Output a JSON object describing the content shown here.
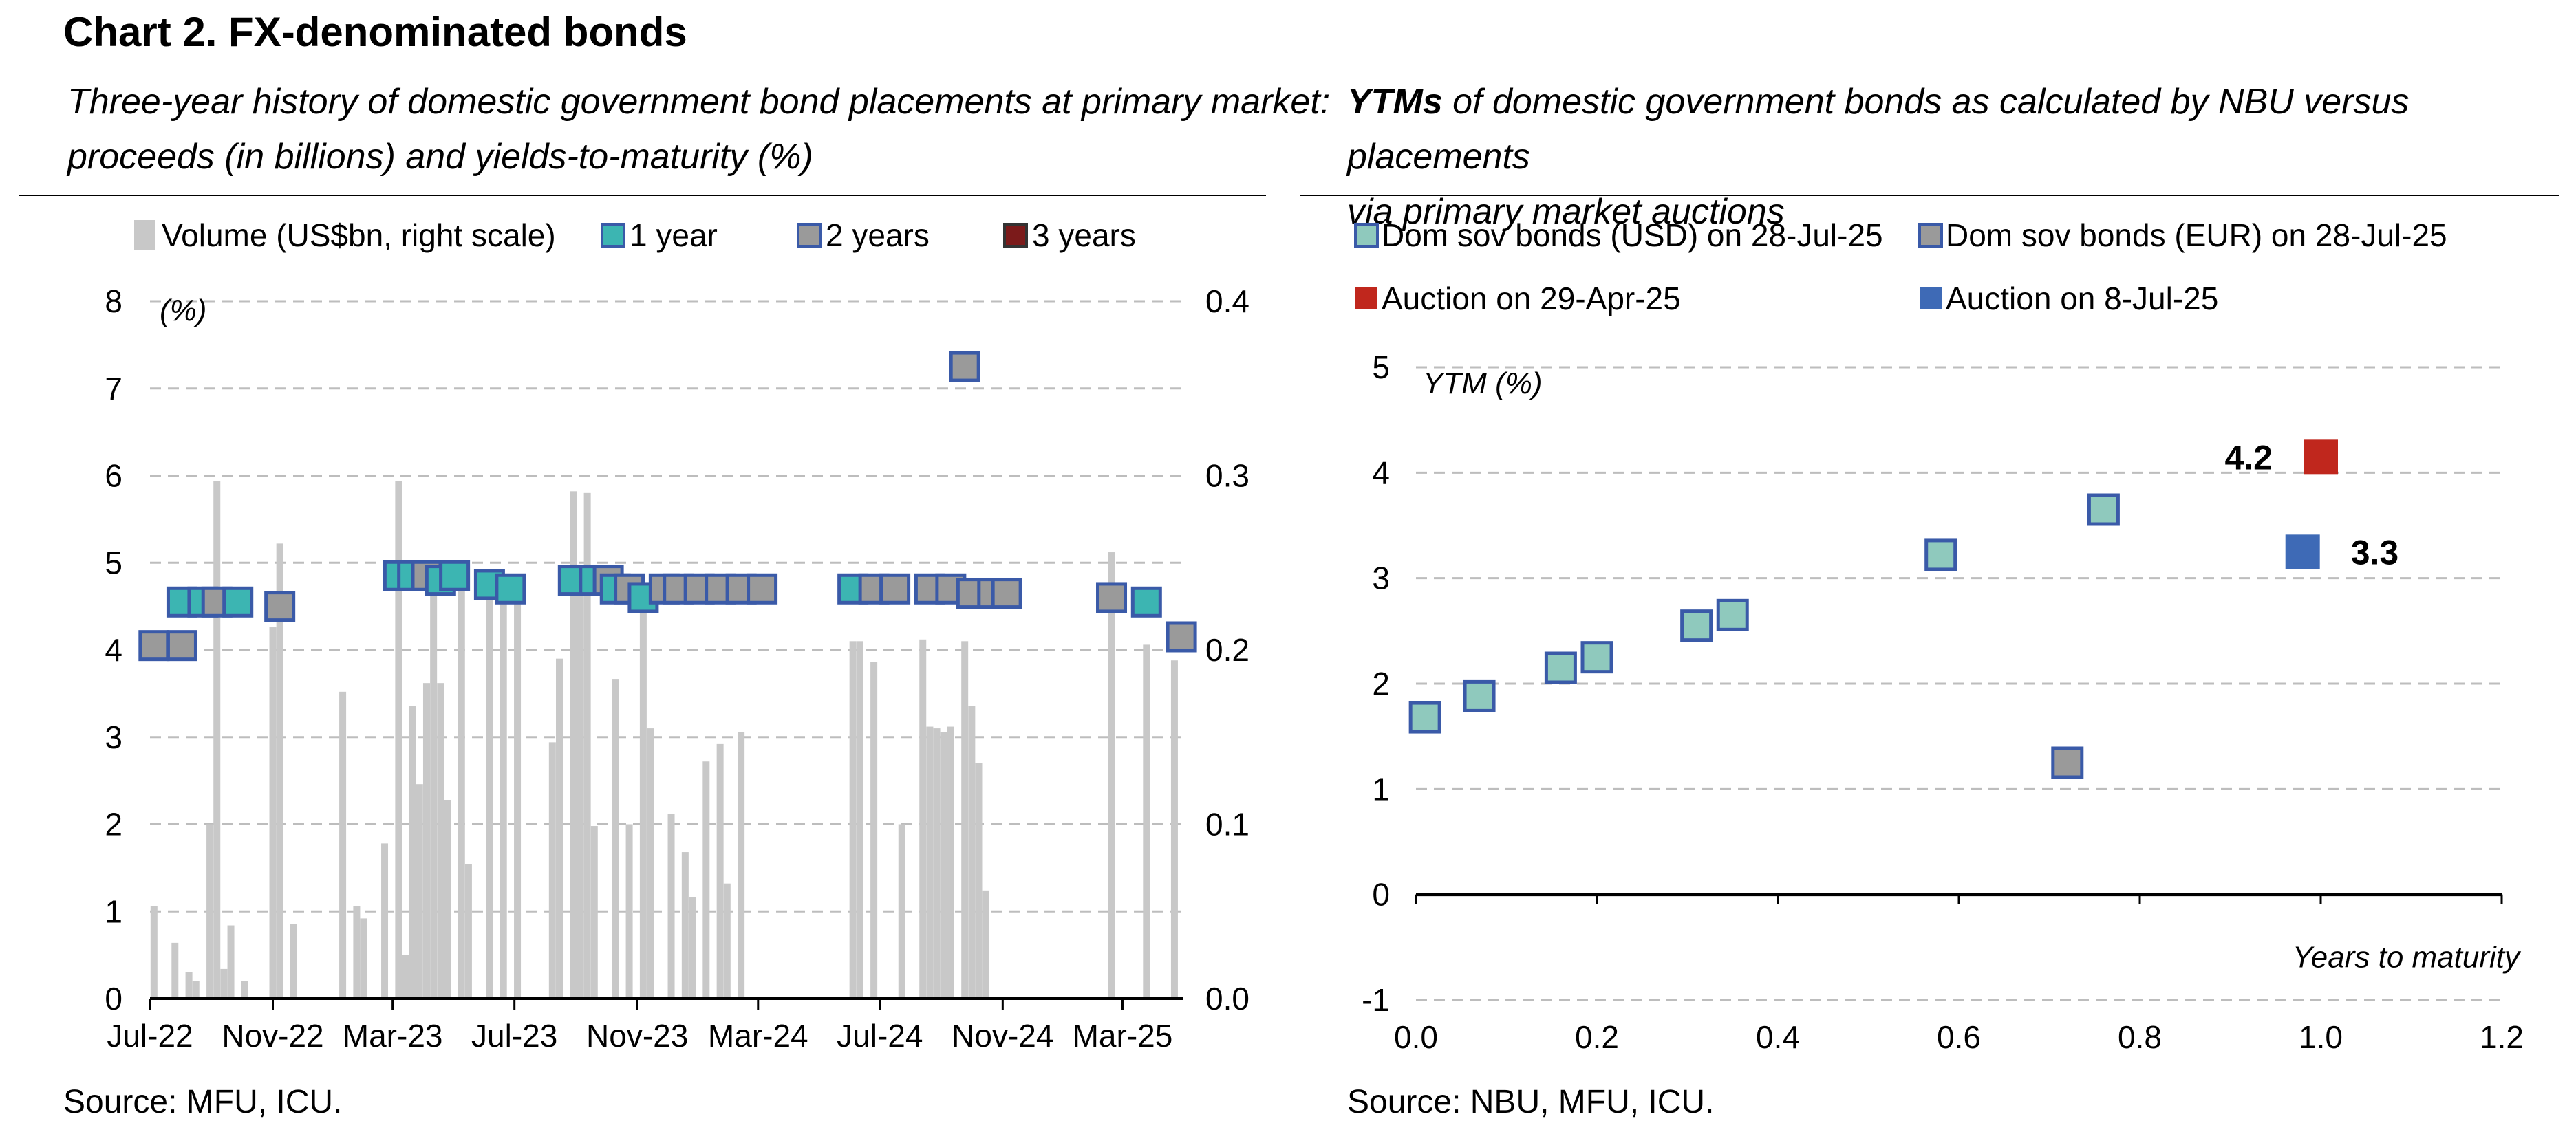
{
  "title": "Chart 2. FX-denominated bonds",
  "left": {
    "subtitle_line1": "Three-year history of domestic government bond placements at primary market:",
    "subtitle_line2": "proceeds (in billions) and yields-to-maturity (%)",
    "source": "Source: MFU, ICU."
  },
  "right": {
    "subtitle_bold": "YTMs",
    "subtitle_rest1": " of domestic government bonds as calculated by NBU versus placements",
    "subtitle_line2": "via primary market auctions",
    "source": "Source: NBU, MFU, ICU."
  },
  "colors": {
    "volume_bar": "#c8c8c8",
    "one_year": "#3cb5b2",
    "two_years": "#9a9a9a",
    "three_years": "#7b1a1a",
    "marker_border": "#3a5aa8",
    "usd_bond": "#8fc9bd",
    "eur_bond": "#9a9a9a",
    "auction_apr": "#c0271d",
    "auction_jul": "#3e6ab6",
    "gridline": "#bdbdbd"
  },
  "chart_data": [
    {
      "type": "bar+scatter",
      "legend": [
        {
          "key": "volume",
          "label": "Volume (US$bn, right scale)"
        },
        {
          "key": "one_year",
          "label": "1 year"
        },
        {
          "key": "two_years",
          "label": "2 years"
        },
        {
          "key": "three_years",
          "label": "3 years"
        }
      ],
      "ylabel_left": "(%)",
      "ylim_left": [
        0,
        8
      ],
      "yticks_left": [
        "0",
        "1",
        "2",
        "3",
        "4",
        "5",
        "6",
        "7",
        "8"
      ],
      "ylim_right": [
        0,
        0.4
      ],
      "yticks_right": [
        "0.0",
        "0.1",
        "0.2",
        "0.3",
        "0.4"
      ],
      "x_range": [
        "2022-07-01",
        "2025-05-01"
      ],
      "x_ticks": [
        {
          "date": "2022-07-01",
          "label": "Jul-22"
        },
        {
          "date": "2022-11-01",
          "label": "Nov-22"
        },
        {
          "date": "2023-03-01",
          "label": "Mar-23"
        },
        {
          "date": "2023-07-01",
          "label": "Jul-23"
        },
        {
          "date": "2023-11-01",
          "label": "Nov-23"
        },
        {
          "date": "2024-03-01",
          "label": "Mar-24"
        },
        {
          "date": "2024-07-01",
          "label": "Jul-24"
        },
        {
          "date": "2024-11-01",
          "label": "Nov-24"
        },
        {
          "date": "2025-03-01",
          "label": "Mar-25"
        }
      ],
      "volume_series": [
        {
          "date": "2022-07-05",
          "value": 0.053
        },
        {
          "date": "2022-07-26",
          "value": 0.032
        },
        {
          "date": "2022-08-09",
          "value": 0.015
        },
        {
          "date": "2022-08-16",
          "value": 0.01
        },
        {
          "date": "2022-08-30",
          "value": 0.1
        },
        {
          "date": "2022-09-06",
          "value": 0.297
        },
        {
          "date": "2022-09-13",
          "value": 0.017
        },
        {
          "date": "2022-09-20",
          "value": 0.042
        },
        {
          "date": "2022-10-04",
          "value": 0.01
        },
        {
          "date": "2022-11-01",
          "value": 0.213
        },
        {
          "date": "2022-11-08",
          "value": 0.261
        },
        {
          "date": "2022-11-22",
          "value": 0.043
        },
        {
          "date": "2023-01-10",
          "value": 0.176
        },
        {
          "date": "2023-01-24",
          "value": 0.053
        },
        {
          "date": "2023-01-31",
          "value": 0.046
        },
        {
          "date": "2023-02-21",
          "value": 0.089
        },
        {
          "date": "2023-03-07",
          "value": 0.297
        },
        {
          "date": "2023-03-14",
          "value": 0.025
        },
        {
          "date": "2023-03-21",
          "value": 0.168
        },
        {
          "date": "2023-03-28",
          "value": 0.123
        },
        {
          "date": "2023-04-04",
          "value": 0.181
        },
        {
          "date": "2023-04-11",
          "value": 0.234
        },
        {
          "date": "2023-04-18",
          "value": 0.181
        },
        {
          "date": "2023-04-25",
          "value": 0.114
        },
        {
          "date": "2023-05-09",
          "value": 0.237
        },
        {
          "date": "2023-05-16",
          "value": 0.077
        },
        {
          "date": "2023-06-06",
          "value": 0.241
        },
        {
          "date": "2023-06-20",
          "value": 0.237
        },
        {
          "date": "2023-07-04",
          "value": 0.234
        },
        {
          "date": "2023-08-08",
          "value": 0.147
        },
        {
          "date": "2023-08-15",
          "value": 0.195
        },
        {
          "date": "2023-08-29",
          "value": 0.291
        },
        {
          "date": "2023-09-05",
          "value": 0.242
        },
        {
          "date": "2023-09-12",
          "value": 0.29
        },
        {
          "date": "2023-09-19",
          "value": 0.099
        },
        {
          "date": "2023-10-10",
          "value": 0.183
        },
        {
          "date": "2023-10-24",
          "value": 0.1
        },
        {
          "date": "2023-11-07",
          "value": 0.223
        },
        {
          "date": "2023-11-14",
          "value": 0.155
        },
        {
          "date": "2023-12-05",
          "value": 0.106
        },
        {
          "date": "2023-12-19",
          "value": 0.084
        },
        {
          "date": "2023-12-26",
          "value": 0.058
        },
        {
          "date": "2024-01-09",
          "value": 0.136
        },
        {
          "date": "2024-01-23",
          "value": 0.146
        },
        {
          "date": "2024-01-30",
          "value": 0.066
        },
        {
          "date": "2024-02-13",
          "value": 0.153
        },
        {
          "date": "2024-06-04",
          "value": 0.205
        },
        {
          "date": "2024-06-11",
          "value": 0.205
        },
        {
          "date": "2024-06-25",
          "value": 0.193
        },
        {
          "date": "2024-07-23",
          "value": 0.1
        },
        {
          "date": "2024-08-13",
          "value": 0.206
        },
        {
          "date": "2024-08-20",
          "value": 0.156
        },
        {
          "date": "2024-08-27",
          "value": 0.155
        },
        {
          "date": "2024-09-03",
          "value": 0.153
        },
        {
          "date": "2024-09-10",
          "value": 0.156
        },
        {
          "date": "2024-09-24",
          "value": 0.205
        },
        {
          "date": "2024-10-01",
          "value": 0.168
        },
        {
          "date": "2024-10-08",
          "value": 0.135
        },
        {
          "date": "2024-10-15",
          "value": 0.062
        },
        {
          "date": "2025-02-18",
          "value": 0.256
        },
        {
          "date": "2025-03-25",
          "value": 0.203
        },
        {
          "date": "2025-04-22",
          "value": 0.194
        }
      ],
      "yield_points": [
        {
          "date": "2022-07-05",
          "series": "two_years",
          "value": 4.05
        },
        {
          "date": "2022-08-02",
          "series": "two_years",
          "value": 4.05
        },
        {
          "date": "2022-08-02",
          "series": "one_year",
          "value": 4.55
        },
        {
          "date": "2022-08-23",
          "series": "one_year",
          "value": 4.55
        },
        {
          "date": "2022-09-06",
          "series": "two_years",
          "value": 4.55
        },
        {
          "date": "2022-09-27",
          "series": "one_year",
          "value": 4.55
        },
        {
          "date": "2022-11-08",
          "series": "two_years",
          "value": 4.5
        },
        {
          "date": "2023-03-07",
          "series": "one_year",
          "value": 4.85
        },
        {
          "date": "2023-03-21",
          "series": "one_year",
          "value": 4.85
        },
        {
          "date": "2023-04-04",
          "series": "two_years",
          "value": 4.85
        },
        {
          "date": "2023-04-18",
          "series": "one_year",
          "value": 4.8
        },
        {
          "date": "2023-05-02",
          "series": "one_year",
          "value": 4.85
        },
        {
          "date": "2023-06-06",
          "series": "one_year",
          "value": 4.75
        },
        {
          "date": "2023-06-27",
          "series": "one_year",
          "value": 4.7
        },
        {
          "date": "2023-08-29",
          "series": "one_year",
          "value": 4.8
        },
        {
          "date": "2023-09-19",
          "series": "one_year",
          "value": 4.8
        },
        {
          "date": "2023-10-03",
          "series": "two_years",
          "value": 4.8
        },
        {
          "date": "2023-10-10",
          "series": "one_year",
          "value": 4.7
        },
        {
          "date": "2023-10-24",
          "series": "two_years",
          "value": 4.7
        },
        {
          "date": "2023-11-07",
          "series": "one_year",
          "value": 4.6
        },
        {
          "date": "2023-11-28",
          "series": "two_years",
          "value": 4.7
        },
        {
          "date": "2023-12-12",
          "series": "two_years",
          "value": 4.7
        },
        {
          "date": "2024-01-02",
          "series": "two_years",
          "value": 4.7
        },
        {
          "date": "2024-01-23",
          "series": "two_years",
          "value": 4.7
        },
        {
          "date": "2024-02-13",
          "series": "two_years",
          "value": 4.7
        },
        {
          "date": "2024-03-05",
          "series": "two_years",
          "value": 4.7
        },
        {
          "date": "2024-06-04",
          "series": "one_year",
          "value": 4.7
        },
        {
          "date": "2024-06-25",
          "series": "two_years",
          "value": 4.7
        },
        {
          "date": "2024-07-16",
          "series": "two_years",
          "value": 4.7
        },
        {
          "date": "2024-08-20",
          "series": "two_years",
          "value": 4.7
        },
        {
          "date": "2024-09-10",
          "series": "two_years",
          "value": 4.7
        },
        {
          "date": "2024-09-24",
          "series": "two_years",
          "value": 7.25
        },
        {
          "date": "2024-10-01",
          "series": "two_years",
          "value": 4.65
        },
        {
          "date": "2024-10-22",
          "series": "two_years",
          "value": 4.65
        },
        {
          "date": "2024-11-05",
          "series": "two_years",
          "value": 4.65
        },
        {
          "date": "2025-02-18",
          "series": "two_years",
          "value": 4.6
        },
        {
          "date": "2025-03-25",
          "series": "one_year",
          "value": 4.55
        },
        {
          "date": "2025-04-29",
          "series": "two_years",
          "value": 4.15
        }
      ]
    },
    {
      "type": "scatter",
      "legend": [
        {
          "key": "usd",
          "label": "Dom sov bonds (USD) on 28-Jul-25"
        },
        {
          "key": "eur",
          "label": "Dom sov bonds (EUR) on 28-Jul-25"
        },
        {
          "key": "auction_apr",
          "label": "Auction on 29-Apr-25"
        },
        {
          "key": "auction_jul",
          "label": "Auction on 8-Jul-25"
        }
      ],
      "ylabel": "YTM (%)",
      "xlabel": "Years to maturity",
      "xlim": [
        0,
        1.2
      ],
      "ylim": [
        -1,
        5
      ],
      "xticks": [
        "0.0",
        "0.2",
        "0.4",
        "0.6",
        "0.8",
        "1.0",
        "1.2"
      ],
      "yticks": [
        "-1",
        "0",
        "1",
        "2",
        "3",
        "4",
        "5"
      ],
      "points": [
        {
          "series": "usd",
          "x": 0.01,
          "y": 1.68
        },
        {
          "series": "usd",
          "x": 0.07,
          "y": 1.88
        },
        {
          "series": "usd",
          "x": 0.16,
          "y": 2.15
        },
        {
          "series": "usd",
          "x": 0.2,
          "y": 2.25
        },
        {
          "series": "usd",
          "x": 0.31,
          "y": 2.55
        },
        {
          "series": "usd",
          "x": 0.35,
          "y": 2.65
        },
        {
          "series": "usd",
          "x": 0.58,
          "y": 3.22
        },
        {
          "series": "usd",
          "x": 0.76,
          "y": 3.65
        },
        {
          "series": "eur",
          "x": 0.72,
          "y": 1.25
        },
        {
          "series": "auction_apr",
          "x": 1.0,
          "y": 4.15,
          "label": "4.2"
        },
        {
          "series": "auction_jul",
          "x": 0.98,
          "y": 3.25,
          "label": "3.3"
        }
      ]
    }
  ]
}
